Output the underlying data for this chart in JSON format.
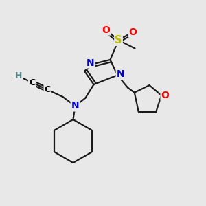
{
  "background_color": "#e8e8e8",
  "atom_colors": {
    "N": "#0000cc",
    "O": "#ff0000",
    "S": "#bbbb00",
    "C": "#000000",
    "H": "#4a8a8a"
  },
  "bond_color": "#1a1a1a",
  "bond_width": 1.6,
  "figsize": [
    3.0,
    3.0
  ],
  "dpi": 100,
  "xlim": [
    0,
    10
  ],
  "ylim": [
    0,
    10
  ]
}
